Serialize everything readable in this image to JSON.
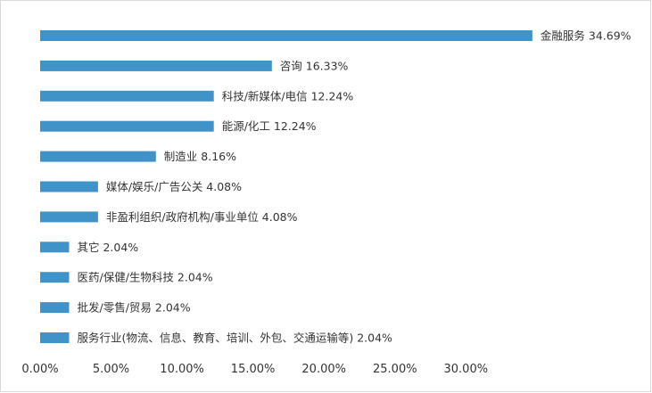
{
  "chart_data": {
    "type": "bar",
    "orientation": "horizontal",
    "title": "",
    "xlabel": "",
    "ylabel": "",
    "xlim": [
      0,
      35
    ],
    "grid": false,
    "legend": "none",
    "bar_color": "#3f93c8",
    "categories": [
      "金融服务",
      "咨询",
      "科技/新媒体/电信",
      "能源/化工",
      "制造业",
      "媒体/娱乐/广告公关",
      "非盈利组织/政府机构/事业单位",
      "其它",
      "医药/保健/生物科技",
      "批发/零售/贸易",
      "服务行业(物流、信息、教育、培训、外包、交通运输等)"
    ],
    "values": [
      34.69,
      16.33,
      12.24,
      12.24,
      8.16,
      4.08,
      4.08,
      2.04,
      2.04,
      2.04,
      2.04
    ],
    "bar_labels": [
      "金融服务 34.69%",
      "咨询 16.33%",
      "科技/新媒体/电信 12.24%",
      "能源/化工 12.24%",
      "制造业 8.16%",
      "媒体/娱乐/广告公关 4.08%",
      "非盈利组织/政府机构/事业单位 4.08%",
      "其它 2.04%",
      "医药/保健/生物科技 2.04%",
      "批发/零售/贸易 2.04%",
      "服务行业(物流、信息、教育、培训、外包、交通运输等) 2.04%"
    ],
    "x_ticks": [
      "0.00%",
      "5.00%",
      "10.00%",
      "15.00%",
      "20.00%",
      "25.00%",
      "30.00%"
    ],
    "x_tick_values": [
      0,
      5,
      10,
      15,
      20,
      25,
      30
    ]
  }
}
